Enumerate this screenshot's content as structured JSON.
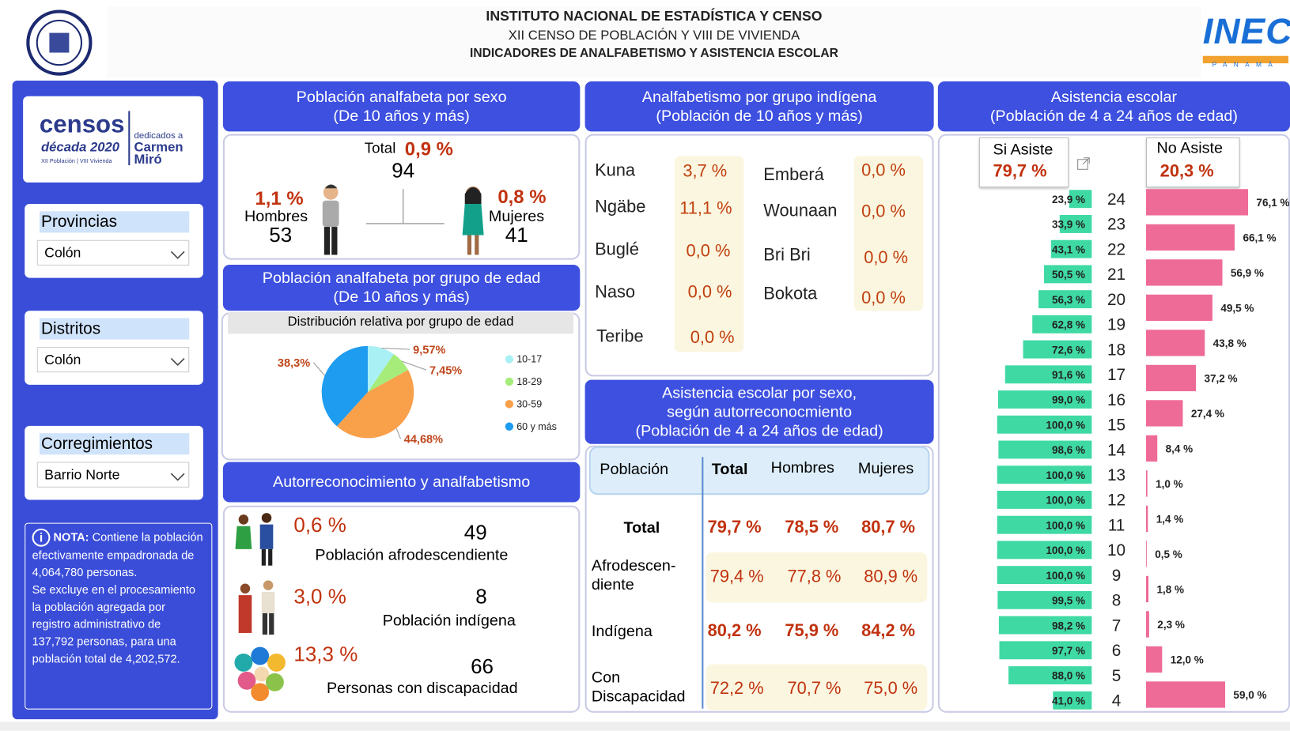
{
  "header": {
    "lines": [
      "INSTITUTO NACIONAL DE ESTADÍSTICA Y CENSO",
      "XII CENSO DE POBLACIÓN Y VIII DE VIVIENDA",
      "INDICADORES DE ANALFABETISMO Y ASISTENCIA ESCOLAR"
    ],
    "inec": "INEC",
    "inec_sub": "PANAMÁ"
  },
  "sidebar": {
    "censos": {
      "word": "censos",
      "decade": "década 2020",
      "dedicated": "dedicados a",
      "name": "Carmen Miró",
      "sub": "XII Población | VIII Vivienda"
    },
    "filters": [
      {
        "label": "Provincias",
        "value": "Colón"
      },
      {
        "label": "Distritos",
        "value": "Colón"
      },
      {
        "label": "Corregimientos",
        "value": "Barrio Norte"
      }
    ],
    "note": {
      "lead": "NOTA:",
      "text": [
        "Contiene la población efectivamente empadronada de 4,064,780 personas.",
        "Se excluye en el procesamiento la población agregada por registro administrativo de 137,792 personas, para una población total de 4,202,572."
      ]
    }
  },
  "sex_panel": {
    "title": [
      "Población analfabeta por sexo",
      "(De 10 años y más)"
    ],
    "total_label": "Total",
    "total_pct": "0,9 %",
    "total_count": 94,
    "men": {
      "pct": "1,1 %",
      "label": "Hombres",
      "count": 53
    },
    "women": {
      "pct": "0,8 %",
      "label": "Mujeres",
      "count": 41
    }
  },
  "age_panel": {
    "title": [
      "Población analfabeta por grupo de edad",
      "(De 10 años y más)"
    ]
  },
  "self_panel": {
    "title": "Autorreconocimiento y analfabetismo",
    "rows": [
      {
        "pct": "0,6 %",
        "count": 49,
        "label": "Población afrodescendiente"
      },
      {
        "pct": "3,0 %",
        "count": 8,
        "label": "Población indígena"
      },
      {
        "pct": "13,3 %",
        "count": 66,
        "label": "Personas con discapacidad"
      }
    ]
  },
  "indigenous_panel": {
    "title": [
      "Analfabetismo por grupo indígena",
      "(Población de 10 años y más)"
    ],
    "groups": [
      {
        "name": "Kuna",
        "value": "3,7 %"
      },
      {
        "name": "Ngäbe",
        "value": "11,1 %"
      },
      {
        "name": "Buglé",
        "value": "0,0 %"
      },
      {
        "name": "Naso",
        "value": "0,0 %"
      },
      {
        "name": "Teribe",
        "value": "0,0 %"
      },
      {
        "name": "Emberá",
        "value": "0,0 %"
      },
      {
        "name": "Wounaan",
        "value": "0,0 %"
      },
      {
        "name": "Bri Bri",
        "value": "0,0 %"
      },
      {
        "name": "Bokota",
        "value": "0,0 %"
      }
    ]
  },
  "attendance_table": {
    "title": [
      "Asistencia escolar por sexo,",
      "según autorreconocmiento",
      "(Población de 4 a 24 años de edad)"
    ],
    "header": [
      "Población",
      "Total",
      "Hombres",
      "Mujeres"
    ],
    "rows": [
      [
        "Total",
        "79,7 %",
        "78,5 %",
        "80,7 %"
      ],
      [
        "Afrodescen-\ndiente",
        "79,4 %",
        "77,8 %",
        "80,9 %"
      ],
      [
        "Indígena",
        "80,2 %",
        "75,9 %",
        "84,2 %"
      ],
      [
        "Con\nDiscapacidad",
        "72,2 %",
        "70,7 %",
        "75,0 %"
      ]
    ]
  },
  "chart_data": [
    {
      "type": "pie",
      "title": "Distribución relativa por grupo de edad",
      "categories": [
        "10-17",
        "18-29",
        "30-59",
        "60 y más"
      ],
      "values": [
        9.57,
        7.45,
        44.68,
        38.3
      ],
      "value_labels": [
        "9,57%",
        "7,45%",
        "44,68%",
        "38,3%"
      ],
      "colors": [
        "#a8f0f4",
        "#a6ec7a",
        "#f9a04b",
        "#1e9cf0"
      ]
    },
    {
      "type": "butterfly",
      "title": "Asistencia escolar",
      "subtitle": "(Población de 4 a 24 años de edad)",
      "categories": [
        24,
        23,
        22,
        21,
        20,
        19,
        18,
        17,
        16,
        15,
        14,
        13,
        12,
        11,
        10,
        9,
        8,
        7,
        6,
        5,
        4
      ],
      "series": [
        {
          "name": "Si Asiste",
          "summary": "79,7 %",
          "color": "#3fd9a4",
          "values": [
            23.9,
            33.9,
            43.1,
            50.5,
            56.3,
            62.8,
            72.6,
            91.6,
            99.0,
            100.0,
            98.6,
            100.0,
            100.0,
            100.0,
            100.0,
            100.0,
            99.5,
            98.2,
            97.7,
            88.0,
            41.0
          ],
          "value_labels": [
            "23,9 %",
            "33,9 %",
            "43,1 %",
            "50,5 %",
            "56,3 %",
            "62,8 %",
            "72,6 %",
            "91,6 %",
            "99,0 %",
            "100,0 %",
            "98,6 %",
            "100,0 %",
            "100,0 %",
            "100,0 %",
            "100,0 %",
            "100,0 %",
            "99,5 %",
            "98,2 %",
            "97,7 %",
            "88,0 %",
            "41,0 %"
          ]
        },
        {
          "name": "No Asiste",
          "summary": "20,3 %",
          "color": "#ee6b98",
          "values": [
            76.1,
            66.1,
            56.9,
            49.5,
            43.8,
            37.2,
            27.4,
            8.4,
            1.0,
            null,
            1.4,
            null,
            null,
            null,
            null,
            null,
            0.5,
            1.8,
            2.3,
            12.0,
            59.0
          ],
          "value_labels": [
            "76,1 %",
            "66,1 %",
            "56,9 %",
            "49,5 %",
            "43,8 %",
            "37,2 %",
            "27,4 %",
            "8,4 %",
            "1,0 %",
            null,
            "1,4 %",
            null,
            null,
            null,
            null,
            null,
            "0,5 %",
            "1,8 %",
            "2,3 %",
            "12,0 %",
            "59,0 %"
          ]
        }
      ]
    }
  ]
}
